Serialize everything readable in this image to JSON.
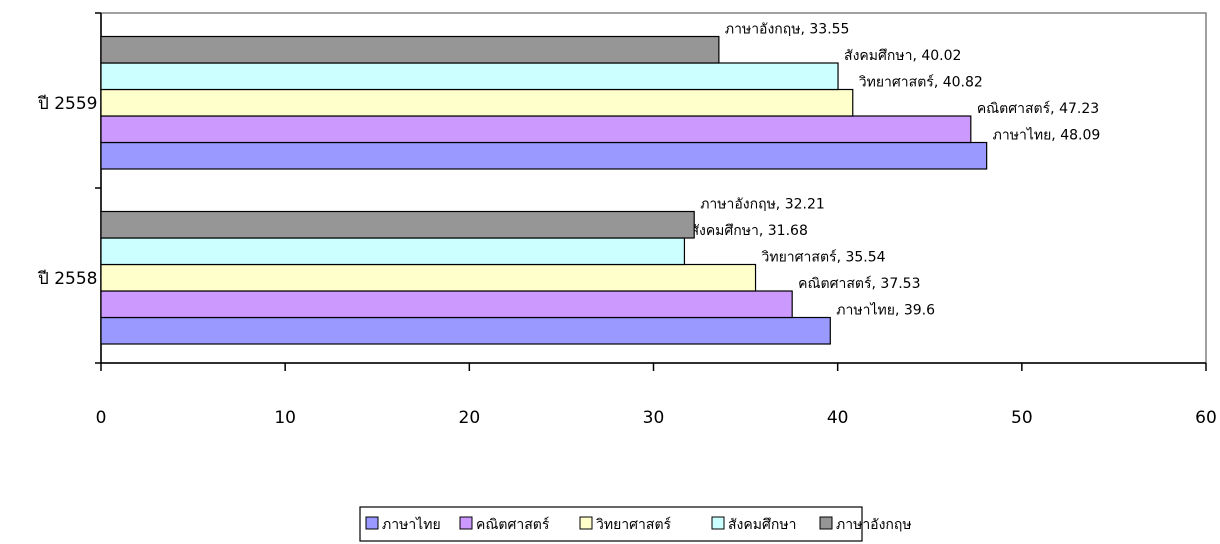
{
  "chart_data": {
    "type": "bar",
    "orientation": "horizontal",
    "categories": [
      "ปี 2558",
      "ปี 2559"
    ],
    "series": [
      {
        "name": "ภาษาไทย",
        "color": "#9999ff",
        "values": [
          39.6,
          48.09
        ]
      },
      {
        "name": "คณิตศาสตร์",
        "color": "#cc99ff",
        "values": [
          37.53,
          47.23
        ]
      },
      {
        "name": "วิทยาศาสตร์",
        "color": "#ffffcc",
        "values": [
          35.54,
          40.82
        ]
      },
      {
        "name": "สังคมศึกษา",
        "color": "#ccffff",
        "values": [
          31.68,
          40.02
        ]
      },
      {
        "name": "ภาษาอังกฤษ",
        "color": "#969696",
        "values": [
          32.21,
          33.55
        ]
      }
    ],
    "data_labels": [
      [
        "ภาษาไทย, 39.6",
        "ภาษาไทย, 48.09"
      ],
      [
        "คณิตศาสตร์, 37.53",
        "คณิตศาสตร์, 47.23"
      ],
      [
        "วิทยาศาสตร์, 35.54",
        "วิทยาศาสตร์, 40.82"
      ],
      [
        "สังคมศึกษา, 31.68",
        "สังคมศึกษา, 40.02"
      ],
      [
        "ภาษาอังกฤษ, 32.21",
        "ภาษาอังกฤษ, 33.55"
      ]
    ],
    "x_ticks": [
      "0",
      "10",
      "20",
      "30",
      "40",
      "50",
      "60"
    ],
    "xlim": [
      0,
      60
    ],
    "grid": false,
    "legend_position": "bottom"
  }
}
